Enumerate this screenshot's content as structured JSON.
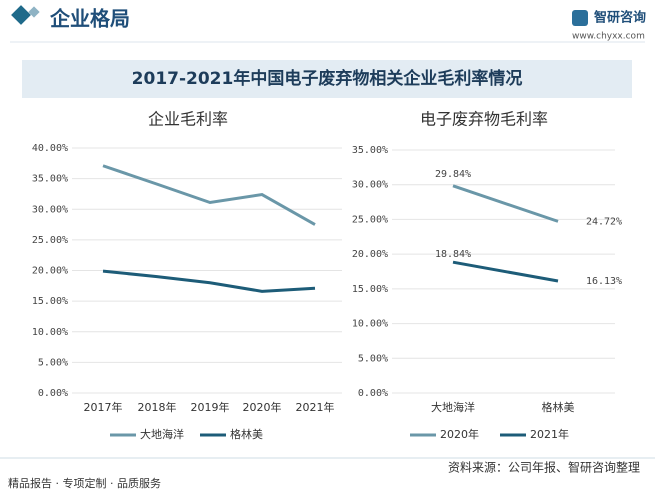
{
  "header": {
    "section": "企业格局",
    "brand": "智研咨询",
    "website": "www.chyxx.com"
  },
  "main_title": "2017-2021年中国电子废弃物相关企业毛利率情况",
  "footer": {
    "tagline": "精品报告 · 专项定制 · 品质服务",
    "source": "资料来源：公司年报、智研咨询整理"
  },
  "chart_data": [
    {
      "type": "line",
      "title": "企业毛利率",
      "categories": [
        "2017年",
        "2018年",
        "2019年",
        "2020年",
        "2021年"
      ],
      "series": [
        {
          "name": "大地海洋",
          "color": "#6a97a8",
          "values": [
            37.1,
            34.1,
            31.1,
            32.4,
            27.5
          ]
        },
        {
          "name": "格林美",
          "color": "#1d5c78",
          "values": [
            19.9,
            19.0,
            18.0,
            16.6,
            17.1
          ]
        }
      ],
      "ylim": [
        0,
        40
      ],
      "yticks": [
        {
          "value": 0,
          "label": "0.00%"
        },
        {
          "value": 5,
          "label": "5.00%"
        },
        {
          "value": 10,
          "label": "10.00%"
        },
        {
          "value": 15,
          "label": "15.00%"
        },
        {
          "value": 20,
          "label": "20.00%"
        },
        {
          "value": 25,
          "label": "25.00%"
        },
        {
          "value": 30,
          "label": "30.00%"
        },
        {
          "value": 35,
          "label": "35.00%"
        },
        {
          "value": 40,
          "label": "40.00%"
        }
      ],
      "grid": true
    },
    {
      "type": "line",
      "title": "电子废弃物毛利率",
      "categories": [
        "大地海洋",
        "格林美"
      ],
      "series": [
        {
          "name": "2020年",
          "color": "#6a97a8",
          "values": [
            29.84,
            24.72
          ],
          "value_labels": [
            "29.84%",
            "24.72%"
          ]
        },
        {
          "name": "2021年",
          "color": "#1d5c78",
          "values": [
            18.84,
            16.13
          ],
          "value_labels": [
            "18.84%",
            "16.13%"
          ]
        }
      ],
      "ylim": [
        0,
        35
      ],
      "yticks": [
        {
          "value": 0,
          "label": "0.00%"
        },
        {
          "value": 5,
          "label": "5.00%"
        },
        {
          "value": 10,
          "label": "10.00%"
        },
        {
          "value": 15,
          "label": "15.00%"
        },
        {
          "value": 20,
          "label": "20.00%"
        },
        {
          "value": 25,
          "label": "25.00%"
        },
        {
          "value": 30,
          "label": "30.00%"
        },
        {
          "value": 35,
          "label": "35.00%"
        }
      ],
      "grid": true
    }
  ]
}
